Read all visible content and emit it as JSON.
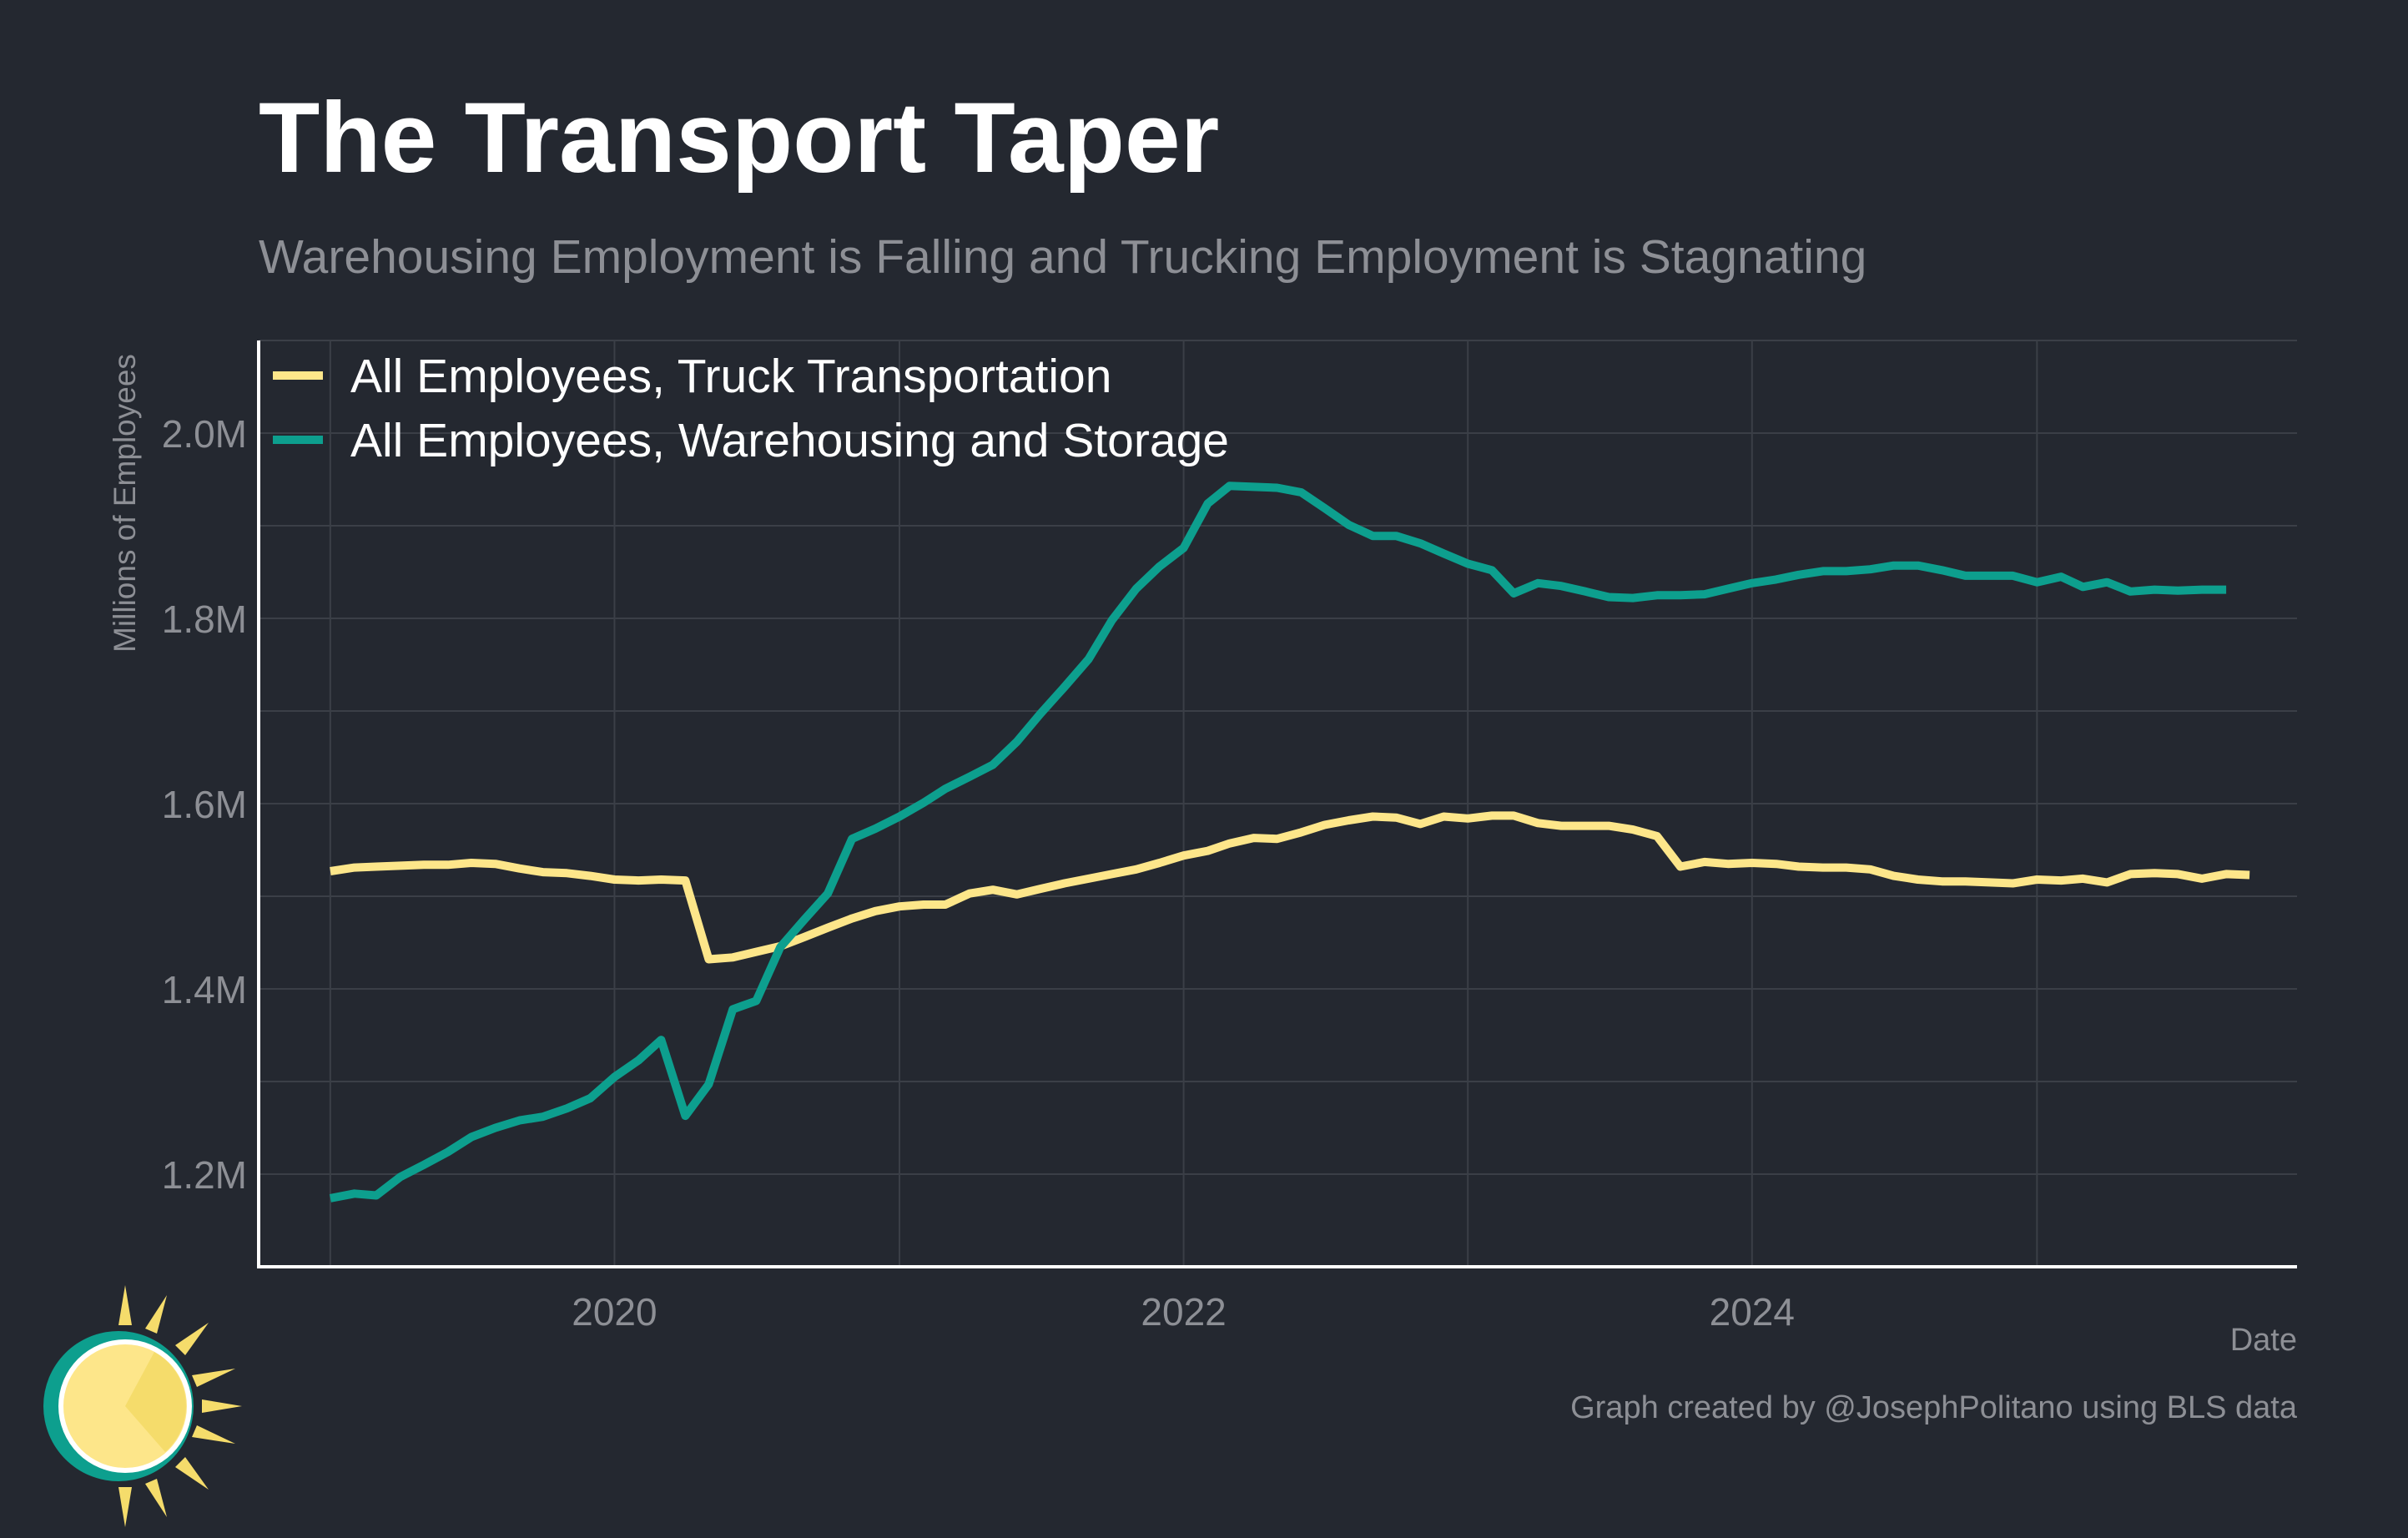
{
  "header": {
    "title": "The Transport Taper",
    "subtitle": "Warehousing Employment is Falling and Trucking Employment is Stagnating"
  },
  "footer": {
    "credit": "Graph created by @JosephPolitano using BLS data"
  },
  "chart_data": {
    "type": "line",
    "title": "The Transport Taper",
    "subtitle": "Warehousing Employment is Falling and Trucking Employment is Stagnating",
    "xlabel": "Date",
    "ylabel": "Millions of Employees",
    "xlim": [
      "2018-10-01",
      "2025-12-01"
    ],
    "ylim": [
      1.1,
      2.1
    ],
    "yticks": [
      1.2,
      1.4,
      1.6,
      1.8,
      2.0
    ],
    "ytick_labels": [
      "1.2M",
      "1.4M",
      "1.6M",
      "1.8M",
      "2.0M"
    ],
    "xticks": [
      "2020-01-01",
      "2022-01-01",
      "2024-01-01"
    ],
    "xtick_labels": [
      "2020",
      "2022",
      "2024"
    ],
    "grid": true,
    "legend_position": "top-left",
    "background": "#242830",
    "series": [
      {
        "name": "All Employees, Truck Transportation",
        "color": "#FDE68A",
        "points": [
          [
            "2019-01-01",
            1.527
          ],
          [
            "2019-02-01",
            1.531
          ],
          [
            "2019-03-01",
            1.532
          ],
          [
            "2019-04-01",
            1.533
          ],
          [
            "2019-05-01",
            1.534
          ],
          [
            "2019-06-01",
            1.534
          ],
          [
            "2019-07-01",
            1.536
          ],
          [
            "2019-08-01",
            1.535
          ],
          [
            "2019-09-01",
            1.53
          ],
          [
            "2019-10-01",
            1.526
          ],
          [
            "2019-11-01",
            1.525
          ],
          [
            "2019-12-01",
            1.522
          ],
          [
            "2020-01-01",
            1.518
          ],
          [
            "2020-02-01",
            1.517
          ],
          [
            "2020-03-01",
            1.518
          ],
          [
            "2020-04-01",
            1.517
          ],
          [
            "2020-05-01",
            1.432
          ],
          [
            "2020-06-01",
            1.434
          ],
          [
            "2020-07-01",
            1.44
          ],
          [
            "2020-08-01",
            1.446
          ],
          [
            "2020-09-01",
            1.456
          ],
          [
            "2020-10-01",
            1.466
          ],
          [
            "2020-11-01",
            1.476
          ],
          [
            "2020-12-01",
            1.484
          ],
          [
            "2021-01-01",
            1.489
          ],
          [
            "2021-02-01",
            1.491
          ],
          [
            "2021-03-01",
            1.491
          ],
          [
            "2021-04-01",
            1.503
          ],
          [
            "2021-05-01",
            1.507
          ],
          [
            "2021-06-01",
            1.502
          ],
          [
            "2021-07-01",
            1.508
          ],
          [
            "2021-08-01",
            1.514
          ],
          [
            "2021-09-01",
            1.519
          ],
          [
            "2021-10-01",
            1.524
          ],
          [
            "2021-11-01",
            1.529
          ],
          [
            "2021-12-01",
            1.536
          ],
          [
            "2022-01-01",
            1.544
          ],
          [
            "2022-02-01",
            1.549
          ],
          [
            "2022-03-01",
            1.557
          ],
          [
            "2022-04-01",
            1.563
          ],
          [
            "2022-05-01",
            1.562
          ],
          [
            "2022-06-01",
            1.569
          ],
          [
            "2022-07-01",
            1.577
          ],
          [
            "2022-08-01",
            1.582
          ],
          [
            "2022-09-01",
            1.586
          ],
          [
            "2022-10-01",
            1.585
          ],
          [
            "2022-11-01",
            1.578
          ],
          [
            "2022-12-01",
            1.586
          ],
          [
            "2023-01-01",
            1.584
          ],
          [
            "2023-02-01",
            1.587
          ],
          [
            "2023-03-01",
            1.587
          ],
          [
            "2023-04-01",
            1.579
          ],
          [
            "2023-05-01",
            1.576
          ],
          [
            "2023-06-01",
            1.576
          ],
          [
            "2023-07-01",
            1.576
          ],
          [
            "2023-08-01",
            1.572
          ],
          [
            "2023-09-01",
            1.565
          ],
          [
            "2023-10-01",
            1.532
          ],
          [
            "2023-11-01",
            1.537
          ],
          [
            "2023-12-01",
            1.535
          ],
          [
            "2024-01-01",
            1.536
          ],
          [
            "2024-02-01",
            1.535
          ],
          [
            "2024-03-01",
            1.532
          ],
          [
            "2024-04-01",
            1.531
          ],
          [
            "2024-05-01",
            1.531
          ],
          [
            "2024-06-01",
            1.529
          ],
          [
            "2024-07-01",
            1.522
          ],
          [
            "2024-08-01",
            1.518
          ],
          [
            "2024-09-01",
            1.516
          ],
          [
            "2024-10-01",
            1.516
          ],
          [
            "2024-11-01",
            1.515
          ],
          [
            "2024-12-01",
            1.514
          ],
          [
            "2025-01-01",
            1.518
          ],
          [
            "2025-02-01",
            1.517
          ],
          [
            "2025-03-01",
            1.519
          ],
          [
            "2025-04-01",
            1.515
          ],
          [
            "2025-05-01",
            1.524
          ],
          [
            "2025-06-01",
            1.525
          ],
          [
            "2025-07-01",
            1.524
          ],
          [
            "2025-08-01",
            1.519
          ],
          [
            "2025-09-01",
            1.524
          ],
          [
            "2025-10-01",
            1.523
          ]
        ]
      },
      {
        "name": "All Employees, Warehousing and Storage",
        "color": "#0D9F8E",
        "points": [
          [
            "2019-01-01",
            1.174
          ],
          [
            "2019-02-01",
            1.179
          ],
          [
            "2019-03-01",
            1.177
          ],
          [
            "2019-04-01",
            1.197
          ],
          [
            "2019-05-01",
            1.21
          ],
          [
            "2019-06-01",
            1.224
          ],
          [
            "2019-07-01",
            1.24
          ],
          [
            "2019-08-01",
            1.25
          ],
          [
            "2019-09-01",
            1.258
          ],
          [
            "2019-10-01",
            1.262
          ],
          [
            "2019-11-01",
            1.271
          ],
          [
            "2019-12-01",
            1.282
          ],
          [
            "2020-01-01",
            1.305
          ],
          [
            "2020-02-01",
            1.323
          ],
          [
            "2020-03-01",
            1.345
          ],
          [
            "2020-04-01",
            1.263
          ],
          [
            "2020-05-01",
            1.297
          ],
          [
            "2020-06-01",
            1.378
          ],
          [
            "2020-07-01",
            1.387
          ],
          [
            "2020-08-01",
            1.445
          ],
          [
            "2020-09-01",
            1.475
          ],
          [
            "2020-10-01",
            1.503
          ],
          [
            "2020-11-01",
            1.562
          ],
          [
            "2020-12-01",
            1.573
          ],
          [
            "2021-01-01",
            1.586
          ],
          [
            "2021-02-01",
            1.601
          ],
          [
            "2021-03-01",
            1.616
          ],
          [
            "2021-04-01",
            1.629
          ],
          [
            "2021-05-01",
            1.642
          ],
          [
            "2021-06-01",
            1.667
          ],
          [
            "2021-07-01",
            1.697
          ],
          [
            "2021-08-01",
            1.726
          ],
          [
            "2021-09-01",
            1.756
          ],
          [
            "2021-10-01",
            1.798
          ],
          [
            "2021-11-01",
            1.832
          ],
          [
            "2021-12-01",
            1.856
          ],
          [
            "2022-01-01",
            1.876
          ],
          [
            "2022-02-01",
            1.924
          ],
          [
            "2022-03-01",
            1.943
          ],
          [
            "2022-04-01",
            1.942
          ],
          [
            "2022-05-01",
            1.941
          ],
          [
            "2022-06-01",
            1.936
          ],
          [
            "2022-07-01",
            1.919
          ],
          [
            "2022-08-01",
            1.901
          ],
          [
            "2022-09-01",
            1.889
          ],
          [
            "2022-10-01",
            1.889
          ],
          [
            "2022-11-01",
            1.881
          ],
          [
            "2022-12-01",
            1.87
          ],
          [
            "2023-01-01",
            1.859
          ],
          [
            "2023-02-01",
            1.852
          ],
          [
            "2023-03-01",
            1.827
          ],
          [
            "2023-04-01",
            1.838
          ],
          [
            "2023-05-01",
            1.835
          ],
          [
            "2023-06-01",
            1.829
          ],
          [
            "2023-07-01",
            1.823
          ],
          [
            "2023-08-01",
            1.822
          ],
          [
            "2023-09-01",
            1.825
          ],
          [
            "2023-10-01",
            1.825
          ],
          [
            "2023-11-01",
            1.826
          ],
          [
            "2023-12-01",
            1.832
          ],
          [
            "2024-01-01",
            1.838
          ],
          [
            "2024-02-01",
            1.842
          ],
          [
            "2024-03-01",
            1.847
          ],
          [
            "2024-04-01",
            1.851
          ],
          [
            "2024-05-01",
            1.851
          ],
          [
            "2024-06-01",
            1.853
          ],
          [
            "2024-07-01",
            1.857
          ],
          [
            "2024-08-01",
            1.857
          ],
          [
            "2024-09-01",
            1.852
          ],
          [
            "2024-10-01",
            1.846
          ],
          [
            "2024-11-01",
            1.846
          ],
          [
            "2024-12-01",
            1.846
          ],
          [
            "2025-01-01",
            1.839
          ],
          [
            "2025-02-01",
            1.845
          ],
          [
            "2025-03-01",
            1.834
          ],
          [
            "2025-04-01",
            1.839
          ],
          [
            "2025-05-01",
            1.829
          ],
          [
            "2025-06-01",
            1.831
          ],
          [
            "2025-07-01",
            1.83
          ],
          [
            "2025-08-01",
            1.831
          ],
          [
            "2025-09-01",
            1.831
          ]
        ]
      }
    ]
  }
}
